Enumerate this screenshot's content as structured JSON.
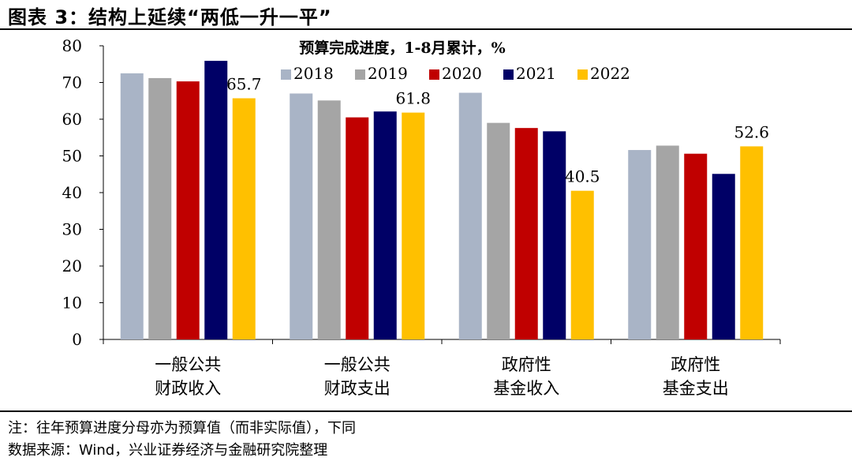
{
  "figure": {
    "title": "图表 3：结构上延续“两低一升一平”",
    "note": "注：往年预算进度分母亦为预算值（而非实际值），下同",
    "source": "数据来源：Wind，兴业证券经济与金融研究院整理"
  },
  "colors": {
    "2018": "#A9B4C6",
    "2019": "#A5A5A5",
    "2020": "#C00000",
    "2021": "#000066",
    "2022": "#FFC000"
  },
  "chart_data": {
    "type": "bar",
    "title": "预算完成进度，1-8月累计，%",
    "categories": [
      [
        "一般公共",
        "财政收入"
      ],
      [
        "一般公共",
        "财政支出"
      ],
      [
        "政府性",
        "基金收入"
      ],
      [
        "政府性",
        "基金支出"
      ]
    ],
    "series": [
      {
        "name": "2018",
        "values": [
          72.5,
          67.0,
          67.2,
          51.6
        ]
      },
      {
        "name": "2019",
        "values": [
          71.2,
          65.1,
          59.0,
          52.8
        ]
      },
      {
        "name": "2020",
        "values": [
          70.3,
          60.5,
          57.6,
          50.6
        ]
      },
      {
        "name": "2021",
        "values": [
          75.9,
          62.1,
          56.7,
          45.1
        ]
      },
      {
        "name": "2022",
        "values": [
          65.7,
          61.8,
          40.5,
          52.6
        ]
      }
    ],
    "data_labels": [
      {
        "series": "2022",
        "category_index": 0,
        "text": "65.7"
      },
      {
        "series": "2022",
        "category_index": 1,
        "text": "61.8"
      },
      {
        "series": "2022",
        "category_index": 2,
        "text": "40.5"
      },
      {
        "series": "2022",
        "category_index": 3,
        "text": "52.6"
      }
    ],
    "yticks": [
      "0",
      "10",
      "20",
      "30",
      "40",
      "50",
      "60",
      "70",
      "80"
    ],
    "ylim": [
      0,
      80
    ],
    "xlabel": "",
    "ylabel": "",
    "grid": false,
    "legend_position": "top-center"
  }
}
